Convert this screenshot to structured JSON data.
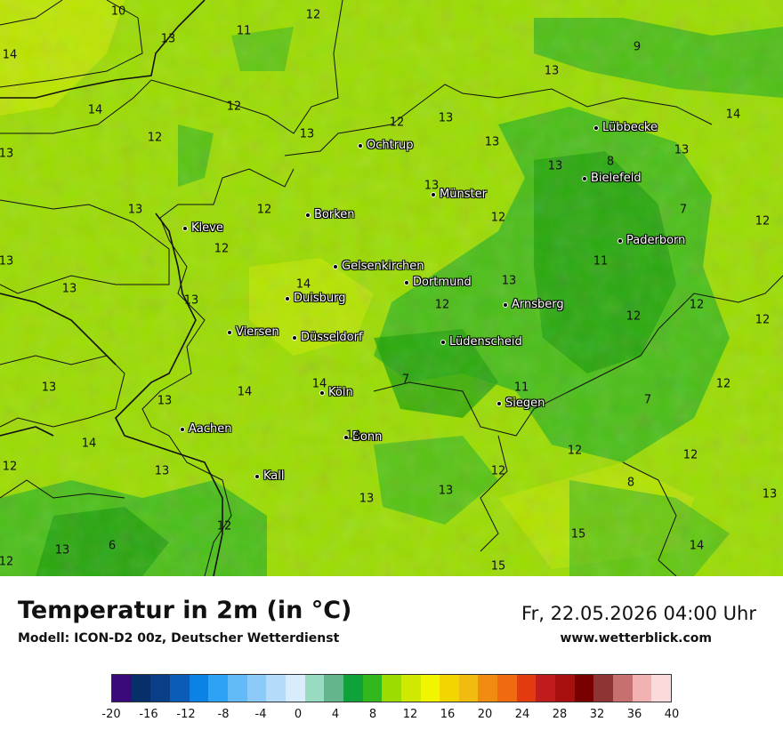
{
  "title": "Temperatur in 2m (in °C)",
  "model": "Modell: ICON-D2 00z, Deutscher Wetterdienst",
  "datetime": "Fr, 22.05.2026 04:00 Uhr",
  "website": "www.wetterblick.com",
  "colors": {
    "field_base": "#9bdc00",
    "field_dark": "#3cb81a",
    "field_mid": "#22a20c",
    "field_light": "#c8ea00",
    "border": "#111111"
  },
  "cities": [
    {
      "name": "Lübbecke"
    },
    {
      "name": "Ochtrup"
    },
    {
      "name": "Bielefeld"
    },
    {
      "name": "Münster"
    },
    {
      "name": "Borken"
    },
    {
      "name": "Kleve"
    },
    {
      "name": "Paderborn"
    },
    {
      "name": "Gelsenkirchen"
    },
    {
      "name": "Dortmund"
    },
    {
      "name": "Duisburg"
    },
    {
      "name": "Arnsberg"
    },
    {
      "name": "Viersen"
    },
    {
      "name": "Düsseldorf"
    },
    {
      "name": "Lüdenscheid"
    },
    {
      "name": "Köln"
    },
    {
      "name": "Siegen"
    },
    {
      "name": "Aachen"
    },
    {
      "name": "Bonn"
    },
    {
      "name": "Kall"
    }
  ],
  "temperature_labels": [
    "10",
    "12",
    "13",
    "11",
    "14",
    "14",
    "12",
    "12",
    "13",
    "13",
    "12",
    "13",
    "12",
    "13",
    "13",
    "9",
    "13",
    "14",
    "13",
    "13",
    "8",
    "13",
    "12",
    "13",
    "7",
    "12",
    "13",
    "12",
    "11",
    "13",
    "12",
    "13",
    "12",
    "12",
    "12",
    "13",
    "14",
    "14",
    "13",
    "7",
    "11",
    "7",
    "12",
    "14",
    "12",
    "13",
    "14",
    "14",
    "13",
    "12",
    "13",
    "12",
    "12",
    "8",
    "13",
    "12",
    "6",
    "13",
    "15",
    "14",
    "12",
    "15"
  ],
  "legend": {
    "colors": [
      "#3a0a7a",
      "#07306a",
      "#0a3f88",
      "#0a5cb6",
      "#0a82e6",
      "#2ea2f5",
      "#62bbf8",
      "#8ccaf8",
      "#b4dcfa",
      "#d8ecfb",
      "#98dbc0",
      "#64b48c",
      "#10a23a",
      "#32b81c",
      "#9ddc00",
      "#cfe900",
      "#f1f500",
      "#f2d600",
      "#f2bb10",
      "#f08d10",
      "#f06a10",
      "#e43a10",
      "#c01c1c",
      "#a81010",
      "#7a0000",
      "#8e3434",
      "#c67070",
      "#f2b2b2",
      "#fadada"
    ],
    "ticks": [
      "-20",
      "-16",
      "-12",
      "-8",
      "-4",
      "0",
      "4",
      "8",
      "12",
      "16",
      "20",
      "24",
      "28",
      "32",
      "36",
      "40"
    ]
  }
}
